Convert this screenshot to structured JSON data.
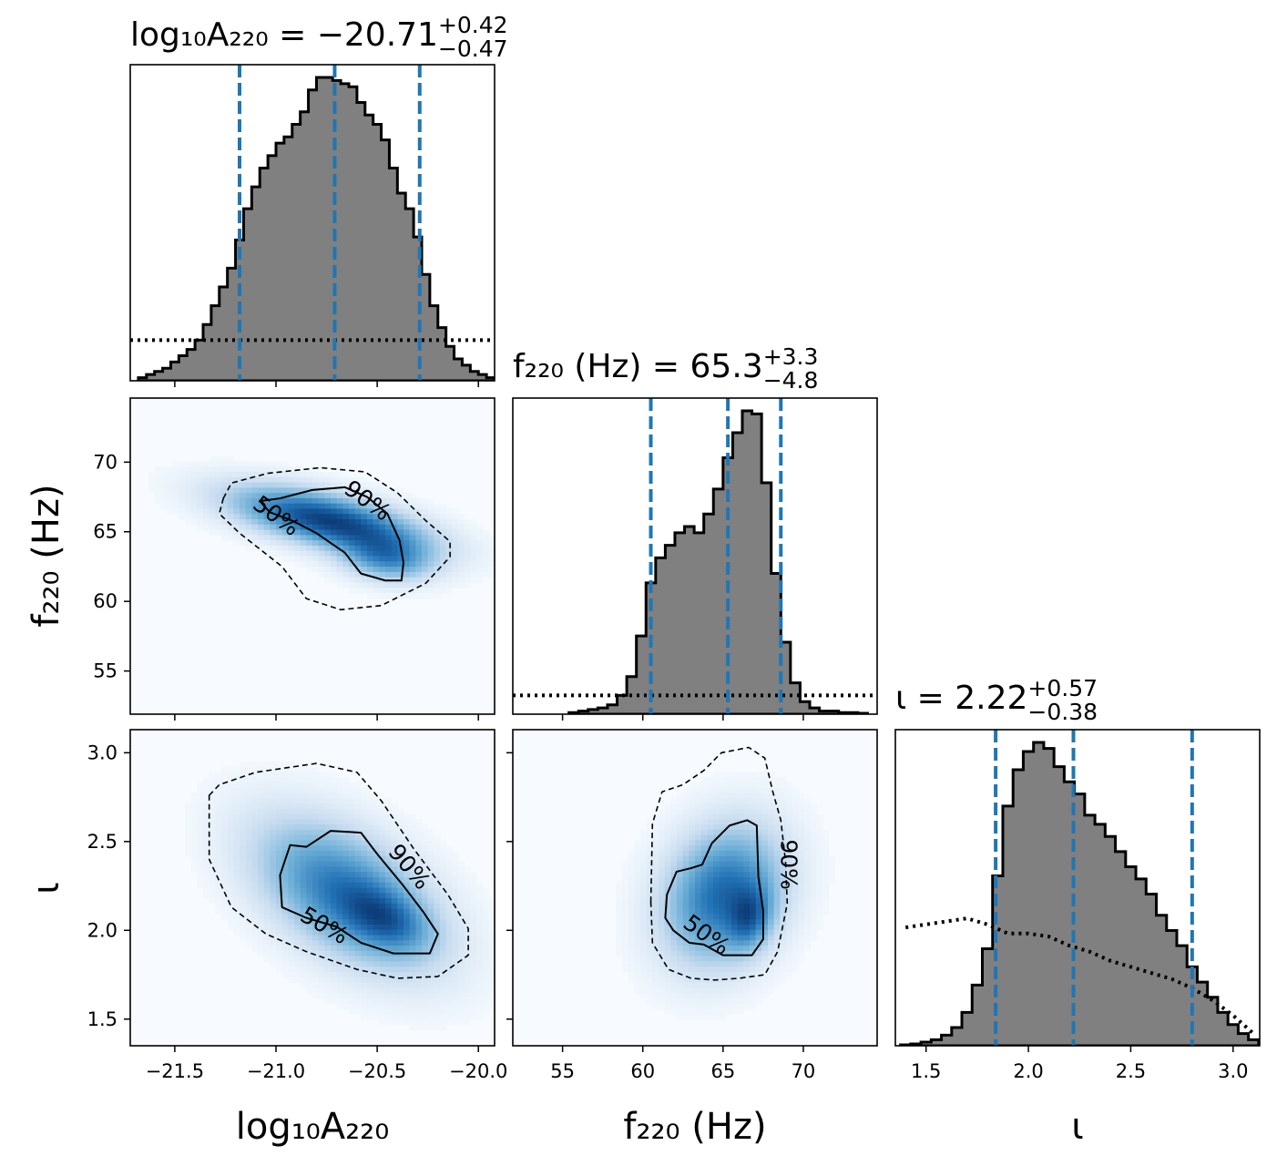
{
  "chart_data": {
    "type": "corner",
    "parameters": [
      {
        "key": "logA",
        "label": "log₁₀A₂₂₀",
        "range": [
          -21.72,
          -19.92
        ],
        "ticks": [
          -21.5,
          -21.0,
          -20.5,
          -20.0
        ],
        "tick_labels": [
          "−21.5",
          "−21.0",
          "−20.5",
          "−20.0"
        ]
      },
      {
        "key": "f",
        "label": "f₂₂₀ (Hz)",
        "range": [
          51.9,
          74.6
        ],
        "ticks": [
          55,
          60,
          65,
          70
        ],
        "tick_labels": [
          "55",
          "60",
          "65",
          "70"
        ]
      },
      {
        "key": "iota",
        "label": "ι",
        "range": [
          1.35,
          3.13
        ],
        "ticks": [
          1.5,
          2.0,
          2.5,
          3.0
        ],
        "tick_labels": [
          "1.5",
          "2.0",
          "2.5",
          "3.0"
        ]
      }
    ],
    "marginals": [
      {
        "param": "logA",
        "title": {
          "base": "log₁₀A₂₂₀ = −20.71",
          "plus": "+0.42",
          "minus": "−0.47"
        },
        "median": -20.71,
        "lower": -21.18,
        "upper": -20.29,
        "hist_x": [
          -21.66,
          -21.62,
          -21.58,
          -21.54,
          -21.5,
          -21.46,
          -21.42,
          -21.38,
          -21.34,
          -21.3,
          -21.26,
          -21.22,
          -21.18,
          -21.14,
          -21.1,
          -21.06,
          -21.02,
          -20.98,
          -20.94,
          -20.9,
          -20.86,
          -20.82,
          -20.78,
          -20.74,
          -20.7,
          -20.66,
          -20.62,
          -20.58,
          -20.54,
          -20.5,
          -20.46,
          -20.42,
          -20.38,
          -20.34,
          -20.3,
          -20.26,
          -20.22,
          -20.18,
          -20.14,
          -20.1,
          -20.06,
          -20.02,
          -19.98,
          -19.94
        ],
        "hist_y": [
          0.01,
          0.02,
          0.03,
          0.04,
          0.06,
          0.08,
          0.1,
          0.13,
          0.18,
          0.24,
          0.3,
          0.36,
          0.45,
          0.55,
          0.62,
          0.68,
          0.72,
          0.76,
          0.78,
          0.82,
          0.86,
          0.93,
          0.97,
          0.97,
          0.96,
          0.95,
          0.94,
          0.89,
          0.85,
          0.82,
          0.77,
          0.68,
          0.6,
          0.55,
          0.46,
          0.34,
          0.24,
          0.17,
          0.11,
          0.07,
          0.05,
          0.03,
          0.02,
          0.01
        ],
        "prior_y": 0.13
      },
      {
        "param": "f",
        "title": {
          "base": "f₂₂₀ (Hz) = 65.3",
          "plus": "+3.3",
          "minus": "−4.8"
        },
        "median": 65.3,
        "lower": 60.5,
        "upper": 68.6,
        "hist_x": [
          55.7,
          56.3,
          56.9,
          57.5,
          58.1,
          58.7,
          59.3,
          59.9,
          60.5,
          61.1,
          61.7,
          62.3,
          62.9,
          63.5,
          64.1,
          64.7,
          65.3,
          65.9,
          66.5,
          67.1,
          67.7,
          68.3,
          68.9,
          69.5,
          70.1,
          70.7,
          71.3,
          71.9,
          72.5,
          73.1,
          73.7
        ],
        "hist_y": [
          0.005,
          0.01,
          0.015,
          0.02,
          0.03,
          0.06,
          0.12,
          0.25,
          0.42,
          0.5,
          0.54,
          0.58,
          0.6,
          0.58,
          0.64,
          0.72,
          0.82,
          0.9,
          0.97,
          0.96,
          0.74,
          0.45,
          0.23,
          0.1,
          0.04,
          0.02,
          0.01,
          0.01,
          0.005,
          0.005,
          0.003
        ],
        "prior_y": 0.06
      },
      {
        "param": "iota",
        "title": {
          "base": "ι = 2.22",
          "plus": "+0.57",
          "minus": "−0.38"
        },
        "median": 2.22,
        "lower": 1.84,
        "upper": 2.8,
        "hist_x": [
          1.4,
          1.45,
          1.5,
          1.55,
          1.6,
          1.65,
          1.7,
          1.75,
          1.8,
          1.85,
          1.9,
          1.95,
          2.0,
          2.05,
          2.1,
          2.15,
          2.2,
          2.25,
          2.3,
          2.35,
          2.4,
          2.45,
          2.5,
          2.55,
          2.6,
          2.65,
          2.7,
          2.75,
          2.8,
          2.85,
          2.9,
          2.95,
          3.0,
          3.05,
          3.1
        ],
        "hist_y": [
          0.003,
          0.006,
          0.012,
          0.02,
          0.035,
          0.06,
          0.11,
          0.2,
          0.32,
          0.56,
          0.79,
          0.91,
          0.97,
          1.0,
          0.98,
          0.92,
          0.87,
          0.83,
          0.76,
          0.73,
          0.69,
          0.64,
          0.59,
          0.55,
          0.5,
          0.43,
          0.38,
          0.33,
          0.26,
          0.21,
          0.16,
          0.11,
          0.07,
          0.04,
          0.02
        ],
        "prior_x": [
          1.4,
          1.5,
          1.6,
          1.7,
          1.8,
          1.9,
          2.0,
          2.1,
          2.2,
          2.3,
          2.4,
          2.5,
          2.6,
          2.7,
          2.8,
          2.9,
          3.0,
          3.1
        ],
        "prior_y": [
          0.39,
          0.4,
          0.41,
          0.42,
          0.4,
          0.37,
          0.37,
          0.36,
          0.33,
          0.31,
          0.28,
          0.26,
          0.24,
          0.22,
          0.19,
          0.15,
          0.1,
          0.04
        ]
      }
    ],
    "joints": [
      {
        "x": "logA",
        "y": "f",
        "density": [
          {
            "cx": -20.74,
            "cy": 65.8,
            "sx": 0.32,
            "sy": 1.6,
            "rho": -0.6,
            "w": 1.0
          },
          {
            "cx": -20.45,
            "cy": 63.0,
            "sx": 0.15,
            "sy": 1.1,
            "rho": -0.2,
            "w": 0.55
          }
        ],
        "contour50": [
          [
            -21.08,
            67.2
          ],
          [
            -20.98,
            67.4
          ],
          [
            -20.82,
            68.0
          ],
          [
            -20.66,
            68.2
          ],
          [
            -20.55,
            67.5
          ],
          [
            -20.45,
            66.3
          ],
          [
            -20.39,
            64.4
          ],
          [
            -20.37,
            62.8
          ],
          [
            -20.38,
            61.5
          ],
          [
            -20.46,
            61.5
          ],
          [
            -20.58,
            62.0
          ],
          [
            -20.66,
            63.5
          ],
          [
            -20.8,
            64.9
          ],
          [
            -20.92,
            65.8
          ],
          [
            -21.03,
            66.4
          ]
        ],
        "contour90": [
          [
            -21.26,
            67.4
          ],
          [
            -21.22,
            68.5
          ],
          [
            -21.04,
            69.2
          ],
          [
            -20.78,
            69.6
          ],
          [
            -20.56,
            69.3
          ],
          [
            -20.4,
            67.8
          ],
          [
            -20.26,
            65.8
          ],
          [
            -20.14,
            64.3
          ],
          [
            -20.14,
            63.2
          ],
          [
            -20.26,
            61.3
          ],
          [
            -20.48,
            59.7
          ],
          [
            -20.68,
            59.4
          ],
          [
            -20.85,
            60.2
          ],
          [
            -20.97,
            62.5
          ],
          [
            -21.18,
            64.9
          ],
          [
            -21.28,
            66.3
          ]
        ],
        "labels": [
          {
            "text": "90%",
            "x": -20.57,
            "y": 66.8,
            "angle": 36
          },
          {
            "text": "50%",
            "x": -21.02,
            "y": 65.7,
            "angle": 36
          }
        ]
      },
      {
        "x": "logA",
        "y": "iota",
        "density": [
          {
            "cx": -20.65,
            "cy": 2.2,
            "sx": 0.3,
            "sy": 0.28,
            "rho": -0.5,
            "w": 1.0
          },
          {
            "cx": -20.45,
            "cy": 2.06,
            "sx": 0.14,
            "sy": 0.12,
            "rho": -0.4,
            "w": 0.5
          }
        ],
        "contour50": [
          [
            -20.93,
            2.48
          ],
          [
            -20.85,
            2.47
          ],
          [
            -20.73,
            2.56
          ],
          [
            -20.58,
            2.55
          ],
          [
            -20.5,
            2.43
          ],
          [
            -20.37,
            2.25
          ],
          [
            -20.27,
            2.1
          ],
          [
            -20.2,
            1.98
          ],
          [
            -20.24,
            1.87
          ],
          [
            -20.42,
            1.87
          ],
          [
            -20.58,
            1.93
          ],
          [
            -20.7,
            2.02
          ],
          [
            -20.85,
            2.07
          ],
          [
            -20.97,
            2.13
          ],
          [
            -20.98,
            2.31
          ]
        ],
        "contour90": [
          [
            -21.33,
            2.76
          ],
          [
            -21.28,
            2.82
          ],
          [
            -21.1,
            2.89
          ],
          [
            -20.8,
            2.94
          ],
          [
            -20.6,
            2.89
          ],
          [
            -20.48,
            2.73
          ],
          [
            -20.32,
            2.46
          ],
          [
            -20.15,
            2.2
          ],
          [
            -20.05,
            2.01
          ],
          [
            -20.05,
            1.86
          ],
          [
            -20.2,
            1.74
          ],
          [
            -20.4,
            1.73
          ],
          [
            -20.6,
            1.78
          ],
          [
            -20.85,
            1.88
          ],
          [
            -21.05,
            1.98
          ],
          [
            -21.22,
            2.13
          ],
          [
            -21.33,
            2.4
          ]
        ],
        "labels": [
          {
            "text": "90%",
            "x": -20.37,
            "y": 2.33,
            "angle": 50
          },
          {
            "text": "50%",
            "x": -20.78,
            "y": 1.99,
            "angle": 30
          }
        ]
      },
      {
        "x": "f",
        "y": "iota",
        "density": [
          {
            "cx": 65.0,
            "cy": 2.2,
            "sx": 2.5,
            "sy": 0.26,
            "rho": 0.2,
            "w": 1.0
          },
          {
            "cx": 66.7,
            "cy": 2.07,
            "sx": 0.9,
            "sy": 0.12,
            "rho": 0.2,
            "w": 0.55
          }
        ],
        "contour50": [
          [
            61.4,
            2.07
          ],
          [
            61.5,
            2.2
          ],
          [
            62.1,
            2.33
          ],
          [
            63.0,
            2.35
          ],
          [
            63.7,
            2.37
          ],
          [
            64.3,
            2.49
          ],
          [
            65.4,
            2.59
          ],
          [
            66.5,
            2.62
          ],
          [
            67.1,
            2.59
          ],
          [
            67.2,
            2.3
          ],
          [
            67.5,
            2.11
          ],
          [
            67.5,
            1.95
          ],
          [
            66.8,
            1.86
          ],
          [
            65.0,
            1.86
          ],
          [
            63.8,
            1.92
          ],
          [
            62.9,
            1.93
          ],
          [
            61.9,
            2.0
          ]
        ],
        "contour90": [
          [
            60.5,
            2.16
          ],
          [
            60.6,
            2.6
          ],
          [
            61.2,
            2.78
          ],
          [
            62.5,
            2.82
          ],
          [
            63.8,
            2.9
          ],
          [
            64.9,
            3.0
          ],
          [
            66.6,
            3.03
          ],
          [
            67.6,
            2.97
          ],
          [
            68.1,
            2.78
          ],
          [
            68.6,
            2.62
          ],
          [
            68.9,
            2.38
          ],
          [
            69.0,
            2.15
          ],
          [
            68.4,
            1.88
          ],
          [
            67.6,
            1.75
          ],
          [
            66.0,
            1.73
          ],
          [
            64.5,
            1.72
          ],
          [
            63.0,
            1.73
          ],
          [
            61.6,
            1.78
          ],
          [
            60.6,
            1.93
          ]
        ],
        "labels": [
          {
            "text": "90%",
            "x": 68.6,
            "y": 2.37,
            "angle": 90
          },
          {
            "text": "50%",
            "x": 63.7,
            "y": 1.94,
            "angle": 36
          }
        ]
      }
    ],
    "colors": {
      "hist_fill": "#808080",
      "quantile_line": "#1f77b4",
      "density_colormap": "Blues"
    }
  }
}
